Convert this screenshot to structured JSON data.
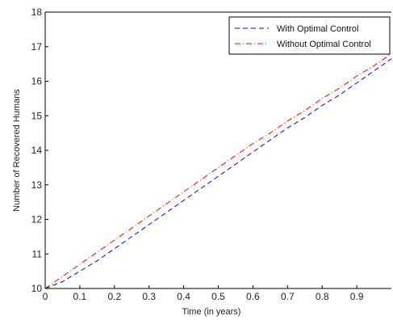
{
  "chart_data": {
    "type": "line",
    "title": "",
    "xlabel": "Time (in years)",
    "ylabel": "Number of Recovered Humans",
    "xlim": [
      0,
      1
    ],
    "ylim": [
      10,
      18
    ],
    "x_ticks": [
      0,
      0.1,
      0.2,
      0.3,
      0.4,
      0.5,
      0.6,
      0.7,
      0.8,
      0.9
    ],
    "x_tick_labels": [
      "0",
      "0.1",
      "0.2",
      "0.3",
      "0.4",
      "0.5",
      "0.6",
      "0.7",
      "0.8",
      "0.9"
    ],
    "y_ticks": [
      10,
      11,
      12,
      13,
      14,
      15,
      16,
      17,
      18
    ],
    "y_tick_labels": [
      "10",
      "11",
      "12",
      "13",
      "14",
      "15",
      "16",
      "17",
      "18"
    ],
    "grid": false,
    "legend_position": "top-right",
    "series": [
      {
        "name": "With Optimal Control",
        "color": "#0000ff",
        "line_style": "dashed",
        "x": [
          0,
          0.05,
          0.1,
          0.15,
          0.2,
          0.25,
          0.3,
          0.35,
          0.4,
          0.45,
          0.5,
          0.55,
          0.6,
          0.65,
          0.7,
          0.75,
          0.8,
          0.85,
          0.9,
          0.95,
          1.0
        ],
        "y": [
          10.0,
          10.2,
          10.5,
          10.8,
          11.15,
          11.5,
          11.85,
          12.2,
          12.55,
          12.9,
          13.25,
          13.6,
          13.95,
          14.3,
          14.65,
          14.95,
          15.3,
          15.6,
          15.95,
          16.3,
          16.65
        ]
      },
      {
        "name": "Without Optimal Control",
        "color": "#ff0000",
        "line_style": "dash-dot",
        "x": [
          0,
          0.05,
          0.1,
          0.15,
          0.2,
          0.25,
          0.3,
          0.35,
          0.4,
          0.45,
          0.5,
          0.55,
          0.6,
          0.65,
          0.7,
          0.75,
          0.8,
          0.85,
          0.9,
          0.95,
          1.0
        ],
        "y": [
          10.0,
          10.35,
          10.7,
          11.05,
          11.4,
          11.75,
          12.1,
          12.45,
          12.8,
          13.15,
          13.5,
          13.85,
          14.2,
          14.5,
          14.85,
          15.15,
          15.5,
          15.8,
          16.15,
          16.45,
          16.8
        ]
      }
    ]
  }
}
